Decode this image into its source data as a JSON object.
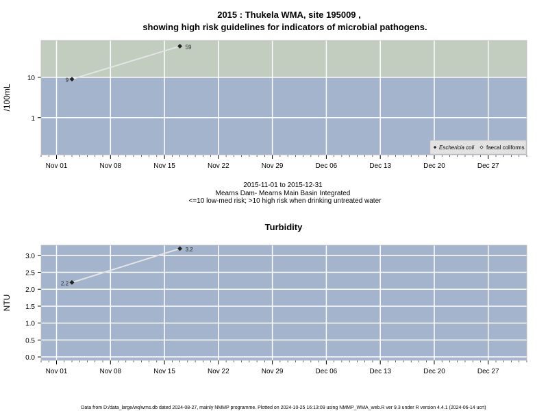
{
  "page": {
    "title_line1": "2015 : Thukela WMA, site 195009 ,",
    "title_line2": "showing high risk guidelines for indicators of microbial pathogens.",
    "caption_line1": "2015-11-01 to 2015-12-31",
    "caption_line2": "Mearns Dam- Mearns Main Basin Integrated",
    "caption_line3": "<=10 low-med risk; >10 high risk when drinking untreated water",
    "footer": "Data from D:/data_large/wq/wms.db dated 2024-08-27, mainly NMMP programme. Plotted on 2024-10-25 16:13:09 using NMMP_WMA_web.R ver 9.3 under R version 4.4.1 (2024-06-14 ucrt)"
  },
  "chart_data": [
    {
      "type": "line",
      "title": "",
      "xlabel": "",
      "ylabel": "/100mL",
      "yscale": "log10",
      "ylim": [
        0.12,
        82
      ],
      "xlim": [
        "2015-10-30",
        "2016-01-01"
      ],
      "x_tick_labels": [
        "Nov 01",
        "Nov 08",
        "Nov 15",
        "Nov 22",
        "Nov 29",
        "Dec 06",
        "Dec 13",
        "Dec 20",
        "Dec 27"
      ],
      "y_tick_labels": [
        "1",
        "10"
      ],
      "y_ticks": [
        1,
        10
      ],
      "threshold": 10,
      "zone_colors": {
        "high_risk": "#c2cdc0",
        "low_risk": "#a3b4cc"
      },
      "legend": {
        "position": "bottom-right",
        "entries": [
          {
            "label": "Eschericia coli",
            "marker": "filled-diamond"
          },
          {
            "label": "faecal coliforms",
            "marker": "open-diamond"
          }
        ]
      },
      "grid": true,
      "series": [
        {
          "name": "Eschericia coli",
          "x": [
            "2015-11-03",
            "2015-11-17"
          ],
          "y": [
            9,
            59
          ],
          "labels": [
            "9",
            "59"
          ]
        }
      ]
    },
    {
      "type": "line",
      "title": "Turbidity",
      "xlabel": "",
      "ylabel": "NTU",
      "yscale": "linear",
      "ylim": [
        -0.1,
        3.3
      ],
      "xlim": [
        "2015-10-30",
        "2016-01-01"
      ],
      "x_tick_labels": [
        "Nov 01",
        "Nov 08",
        "Nov 15",
        "Nov 22",
        "Nov 29",
        "Dec 06",
        "Dec 13",
        "Dec 20",
        "Dec 27"
      ],
      "y_tick_labels": [
        "0.0",
        "0.5",
        "1.0",
        "1.5",
        "2.0",
        "2.5",
        "3.0"
      ],
      "y_ticks": [
        0,
        0.5,
        1,
        1.5,
        2,
        2.5,
        3
      ],
      "background_color": "#a3b4cc",
      "grid": true,
      "series": [
        {
          "x": [
            "2015-11-03",
            "2015-11-17"
          ],
          "y": [
            2.2,
            3.2
          ],
          "labels": [
            "2.2",
            "3.2"
          ]
        }
      ]
    }
  ]
}
